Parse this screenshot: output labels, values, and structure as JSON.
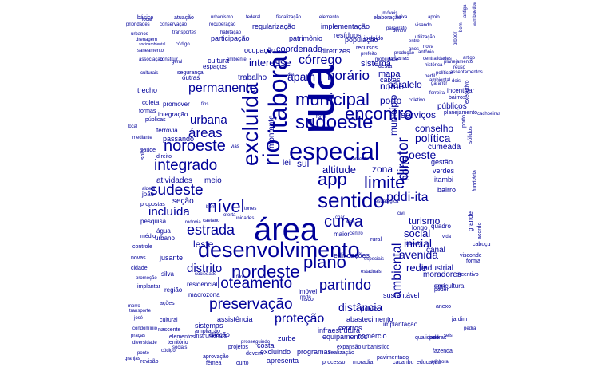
{
  "palette": {
    "word_color": "#000099"
  },
  "words": [
    "rua",
    "área",
    "especial",
    "desenvolvimento",
    "sudoeste",
    "municipal",
    "itaboraí",
    "excluída",
    "rio",
    "encontro",
    "sentido",
    "app",
    "limite",
    "nível",
    "nordeste",
    "curva",
    "plano",
    "loteamento",
    "partindo",
    "preservação",
    "noroeste",
    "integrado",
    "sudeste",
    "estrada",
    "pddi-ita",
    "ambiental",
    "diretor",
    "horário",
    "córrego",
    "permanente",
    "áreas",
    "urbana",
    "incluída",
    "apam",
    "distrito",
    "proteção",
    "distância",
    "oeste",
    "norte",
    "altitude",
    "zona",
    "rede",
    "inicial",
    "avenida",
    "conselho",
    "política",
    "social",
    "serviços",
    "porto",
    "nome",
    "paralelo",
    "cumeada",
    "município",
    "sul",
    "leste",
    "meio",
    "atividades",
    "seção",
    "lei",
    "montante",
    "caixas",
    "mapa",
    "interesse",
    "coordenada",
    "sistema",
    "ocupação",
    "regularização",
    "patrimônio",
    "população",
    "implementação",
    "resíduos",
    "diretrizes",
    "participação",
    "urbanismo",
    "federal",
    "fiscalização",
    "elemento",
    "elaboração",
    "baixa",
    "apoio",
    "básico",
    "prioridades",
    "atuação",
    "conservação",
    "recuperação",
    "habitação",
    "transportes",
    "urbanos",
    "código",
    "drenagem",
    "socioambiental",
    "saneamento",
    "associação",
    "construir",
    "culturais",
    "segurança",
    "espaços",
    "cultura",
    "ambiente",
    "outras",
    "trabalho",
    "recursos",
    "incluído",
    "anos",
    "antônio",
    "centralidades",
    "histórica",
    "urbanas",
    "mobilidade",
    "produção",
    "desta",
    "trecho",
    "coleta",
    "formas",
    "públicas",
    "local",
    "mediante",
    "ferrovia",
    "passando",
    "promover",
    "integração",
    "saúde",
    "solo",
    "direito",
    "joão",
    "aldeia",
    "propostas",
    "pesquisa",
    "água",
    "médio",
    "urbano",
    "controle",
    "jusante",
    "novas",
    "cidade",
    "promoção",
    "implantar",
    "silva",
    "região",
    "residencial",
    "macrozona",
    "ações",
    "morro",
    "transporte",
    "josé",
    "condomínio",
    "praças",
    "diversidade",
    "ponte",
    "granjas",
    "revisão",
    "código",
    "fêmea",
    "curto",
    "processo",
    "moradia",
    "cacaribu",
    "educação",
    "senhora",
    "zurbe",
    "costa",
    "apresenta",
    "excluindo",
    "programas",
    "abastecimento",
    "equipamentos",
    "centros",
    "infraestrutura",
    "implantação",
    "jardim",
    "anexo",
    "qualidade",
    "pedras",
    "fazenda",
    "poder",
    "agricultura",
    "incentivo",
    "moradores",
    "industrial",
    "canal",
    "visconde",
    "forma",
    "cabuçu",
    "turismo",
    "longo",
    "quadro",
    "bairro",
    "itambi",
    "verdes",
    "gestão",
    "incentivar",
    "públicos",
    "bairros",
    "executivo",
    "planejamento",
    "porto",
    "sólidos",
    "fundiária",
    "grande",
    "acordo",
    "devem",
    "assistência",
    "sistemas",
    "criação",
    "ampliação",
    "instrumentos",
    "cultural",
    "nascente",
    "elementos",
    "território",
    "sociais",
    "projetos",
    "aprovação",
    "expansão",
    "pavimentado",
    "comércio",
    "urbanístico",
    "realização",
    "prosseguindo",
    "edificações",
    "sustentável",
    "público",
    "imóvel",
    "risco",
    "especiais",
    "estaduais",
    "rural",
    "maior",
    "centro",
    "vias",
    "civil",
    "criar",
    "oferta",
    "caetano",
    "rodovia",
    "bom",
    "fim",
    "sociedade",
    "torres",
    "unidades",
    "vida",
    "seis",
    "visando",
    "utilização",
    "dentro",
    "entre",
    "artigo",
    "assentamentos",
    "dois",
    "imóveis",
    "paragráfo",
    "ferreira",
    "garantir",
    "reuso",
    "coletivo",
    "prefeito",
    "perfil",
    "planejamento",
    "bem",
    "antiga",
    "políticas",
    "nova",
    "propor",
    "sambaetiba",
    "cachoeiras",
    "ambiental",
    "porte",
    "vila",
    "fonte",
    "tratamento",
    "estratégica",
    "itaboraí",
    "serra",
    "pedra",
    "local",
    "geral",
    "fins",
    "vias"
  ]
}
